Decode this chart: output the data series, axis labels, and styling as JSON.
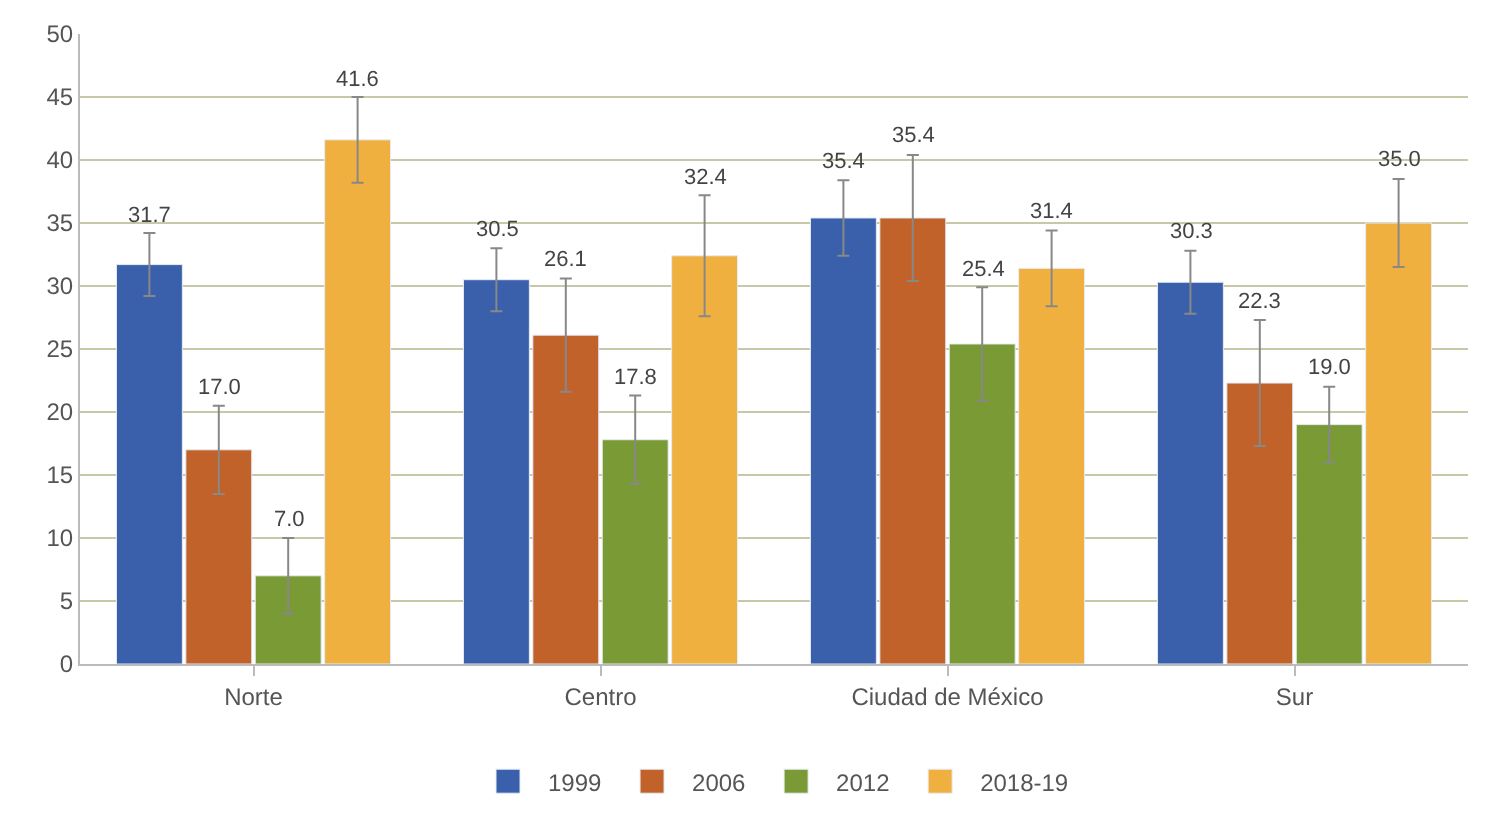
{
  "chart_data": {
    "type": "bar",
    "categories": [
      "Norte",
      "Centro",
      "Ciudad de México",
      "Sur"
    ],
    "series": [
      {
        "name": "1999",
        "color": "#3a5fab",
        "values": [
          31.7,
          30.5,
          35.4,
          30.3
        ],
        "errors": [
          2.5,
          2.5,
          3,
          2.5
        ],
        "value_labels": [
          "31.7",
          "30.5",
          "35.4",
          "30.3"
        ]
      },
      {
        "name": "2006",
        "color": "#c0622a",
        "values": [
          17.0,
          26.1,
          35.4,
          22.3
        ],
        "errors": [
          3.5,
          4.5,
          5,
          5
        ],
        "value_labels": [
          "17.0",
          "26.1",
          "35.4",
          "22.3"
        ]
      },
      {
        "name": "2012",
        "color": "#7a9a35",
        "values": [
          7.0,
          17.8,
          25.4,
          19.0
        ],
        "errors": [
          3,
          3.5,
          4.5,
          3
        ],
        "value_labels": [
          "7.0",
          "17.8",
          "25.4",
          "19.0"
        ]
      },
      {
        "name": "2018-19",
        "color": "#f0b040",
        "values": [
          41.6,
          32.4,
          31.4,
          35.0
        ],
        "errors": [
          3.4,
          4.8,
          3,
          3.5
        ],
        "value_labels": [
          "41.6",
          "32.4",
          "31.4",
          "35.0"
        ]
      }
    ],
    "ylim": [
      0,
      50
    ],
    "yticks": [
      0,
      5,
      10,
      15,
      20,
      25,
      30,
      35,
      40,
      45,
      50
    ],
    "grid": "y",
    "legend": "bottom"
  }
}
